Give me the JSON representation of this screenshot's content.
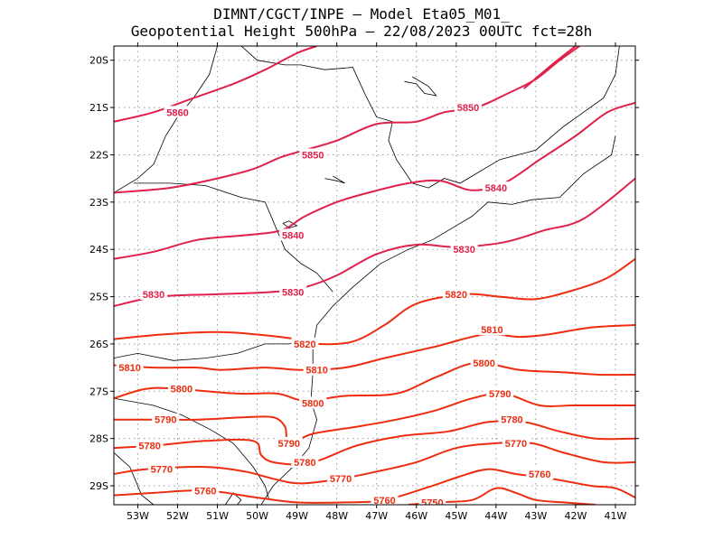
{
  "title": {
    "line1": "DIMNT/CGCT/INPE –  Model Eta05_M01_",
    "line2": "Geopotential Height 500hPa –  22/08/2023 00UTC fct=28h"
  },
  "axes": {
    "lat_labels": [
      "20S",
      "21S",
      "22S",
      "23S",
      "24S",
      "25S",
      "26S",
      "27S",
      "28S",
      "29S"
    ],
    "lon_labels": [
      "53W",
      "52W",
      "51W",
      "50W",
      "49W",
      "48W",
      "47W",
      "46W",
      "45W",
      "44W",
      "43W",
      "42W",
      "41W"
    ],
    "lat_range": [
      -29.4,
      -19.7
    ],
    "lon_range": [
      -53.6,
      -40.5
    ],
    "grid": "dotted"
  },
  "colors": {
    "high": "#e0204a",
    "low": "#ee2c10",
    "coast": "#000000",
    "grid": "#9a9a9a"
  },
  "chart_data": {
    "type": "contour",
    "variable": "Geopotential Height 500hPa",
    "contours": [
      {
        "value": 5860,
        "labels": [
          [
            -52.0,
            -21.1
          ]
        ],
        "points": [
          [
            -53.6,
            -21.3
          ],
          [
            -52.6,
            -21.1
          ],
          [
            -51.6,
            -20.8
          ],
          [
            -50.6,
            -20.5
          ],
          [
            -49.8,
            -20.2
          ],
          [
            -49.0,
            -19.85
          ],
          [
            -48.5,
            -19.7
          ]
        ]
      },
      {
        "value": 5860,
        "labels": [],
        "points": [
          [
            -43.3,
            -20.6
          ],
          [
            -42.6,
            -20.1
          ],
          [
            -42.0,
            -19.7
          ]
        ]
      },
      {
        "value": 5850,
        "labels": [
          [
            -48.6,
            -22.0
          ],
          [
            -44.7,
            -21.0
          ]
        ],
        "points": [
          [
            -53.6,
            -22.8
          ],
          [
            -52.2,
            -22.7
          ],
          [
            -51.0,
            -22.5
          ],
          [
            -50.1,
            -22.3
          ],
          [
            -49.4,
            -22.05
          ],
          [
            -48.8,
            -21.9
          ],
          [
            -48.0,
            -21.7
          ],
          [
            -47.0,
            -21.35
          ],
          [
            -46.0,
            -21.3
          ],
          [
            -45.3,
            -21.1
          ],
          [
            -44.5,
            -21.0
          ],
          [
            -43.7,
            -20.7
          ],
          [
            -43.0,
            -20.4
          ],
          [
            -42.4,
            -20.0
          ],
          [
            -41.9,
            -19.7
          ]
        ]
      },
      {
        "value": 5840,
        "labels": [
          [
            -49.1,
            -23.7
          ],
          [
            -44.0,
            -22.7
          ]
        ],
        "points": [
          [
            -53.6,
            -24.2
          ],
          [
            -52.6,
            -24.05
          ],
          [
            -51.5,
            -23.8
          ],
          [
            -50.3,
            -23.7
          ],
          [
            -49.4,
            -23.6
          ],
          [
            -48.8,
            -23.3
          ],
          [
            -48.0,
            -23.0
          ],
          [
            -47.2,
            -22.8
          ],
          [
            -46.2,
            -22.6
          ],
          [
            -45.4,
            -22.55
          ],
          [
            -44.6,
            -22.75
          ],
          [
            -43.8,
            -22.6
          ],
          [
            -42.9,
            -22.1
          ],
          [
            -42.0,
            -21.6
          ],
          [
            -41.2,
            -21.1
          ],
          [
            -40.5,
            -20.9
          ]
        ]
      },
      {
        "value": 5830,
        "labels": [
          [
            -52.6,
            -24.95
          ],
          [
            -49.1,
            -24.9
          ],
          [
            -44.8,
            -24.0
          ]
        ],
        "points": [
          [
            -53.6,
            -25.2
          ],
          [
            -52.5,
            -25.0
          ],
          [
            -51.0,
            -24.95
          ],
          [
            -49.6,
            -24.9
          ],
          [
            -48.8,
            -24.8
          ],
          [
            -48.0,
            -24.55
          ],
          [
            -47.0,
            -24.1
          ],
          [
            -46.0,
            -23.9
          ],
          [
            -45.0,
            -23.95
          ],
          [
            -43.8,
            -23.85
          ],
          [
            -42.8,
            -23.6
          ],
          [
            -41.8,
            -23.35
          ],
          [
            -40.5,
            -22.5
          ]
        ]
      },
      {
        "value": 5820,
        "labels": [
          [
            -48.8,
            -26.0
          ],
          [
            -45.0,
            -24.95
          ]
        ],
        "points": [
          [
            -53.6,
            -25.9
          ],
          [
            -52.4,
            -25.8
          ],
          [
            -51.0,
            -25.75
          ],
          [
            -50.0,
            -25.8
          ],
          [
            -49.0,
            -25.9
          ],
          [
            -48.5,
            -26.0
          ],
          [
            -47.6,
            -25.95
          ],
          [
            -46.8,
            -25.6
          ],
          [
            -46.0,
            -25.15
          ],
          [
            -44.8,
            -24.95
          ],
          [
            -43.9,
            -25.0
          ],
          [
            -43.0,
            -25.05
          ],
          [
            -42.0,
            -24.85
          ],
          [
            -41.2,
            -24.6
          ],
          [
            -40.5,
            -24.2
          ]
        ]
      },
      {
        "value": 5810,
        "labels": [
          [
            -53.2,
            -26.5
          ],
          [
            -48.5,
            -26.55
          ],
          [
            -44.1,
            -25.7
          ]
        ],
        "points": [
          [
            -53.6,
            -26.45
          ],
          [
            -52.6,
            -26.5
          ],
          [
            -51.5,
            -26.5
          ],
          [
            -50.9,
            -26.55
          ],
          [
            -49.8,
            -26.5
          ],
          [
            -48.9,
            -26.55
          ],
          [
            -47.8,
            -26.5
          ],
          [
            -46.8,
            -26.3
          ],
          [
            -45.5,
            -26.05
          ],
          [
            -44.3,
            -25.8
          ],
          [
            -43.4,
            -25.85
          ],
          [
            -42.7,
            -25.8
          ],
          [
            -41.6,
            -25.65
          ],
          [
            -40.5,
            -25.6
          ]
        ]
      },
      {
        "value": 5800,
        "labels": [
          [
            -51.9,
            -26.95
          ],
          [
            -48.6,
            -27.25
          ],
          [
            -44.3,
            -26.4
          ]
        ],
        "points": [
          [
            -53.6,
            -27.15
          ],
          [
            -52.8,
            -26.95
          ],
          [
            -52.0,
            -26.95
          ],
          [
            -50.5,
            -27.05
          ],
          [
            -49.5,
            -27.05
          ],
          [
            -48.8,
            -27.2
          ],
          [
            -47.8,
            -27.1
          ],
          [
            -46.5,
            -27.05
          ],
          [
            -45.5,
            -26.7
          ],
          [
            -44.5,
            -26.4
          ],
          [
            -43.4,
            -26.55
          ],
          [
            -42.3,
            -26.6
          ],
          [
            -41.4,
            -26.65
          ],
          [
            -40.5,
            -26.65
          ]
        ]
      },
      {
        "value": 5790,
        "labels": [
          [
            -52.3,
            -27.6
          ],
          [
            -49.2,
            -28.1
          ],
          [
            -43.9,
            -27.05
          ]
        ],
        "points": [
          [
            -53.6,
            -27.6
          ],
          [
            -52.8,
            -27.6
          ],
          [
            -51.5,
            -27.6
          ],
          [
            -50.3,
            -27.55
          ],
          [
            -49.6,
            -27.55
          ],
          [
            -49.3,
            -27.75
          ],
          [
            -49.2,
            -28.1
          ],
          [
            -48.6,
            -27.9
          ],
          [
            -47.5,
            -27.75
          ],
          [
            -46.5,
            -27.6
          ],
          [
            -45.5,
            -27.4
          ],
          [
            -44.6,
            -27.15
          ],
          [
            -43.8,
            -27.05
          ],
          [
            -42.9,
            -27.3
          ],
          [
            -42.0,
            -27.3
          ],
          [
            -40.5,
            -27.3
          ]
        ]
      },
      {
        "value": 5780,
        "labels": [
          [
            -52.7,
            -28.15
          ],
          [
            -48.8,
            -28.5
          ],
          [
            -43.6,
            -27.6
          ]
        ],
        "points": [
          [
            -53.6,
            -28.2
          ],
          [
            -52.6,
            -28.15
          ],
          [
            -51.3,
            -28.05
          ],
          [
            -50.1,
            -28.05
          ],
          [
            -49.9,
            -28.35
          ],
          [
            -49.6,
            -28.5
          ],
          [
            -48.9,
            -28.55
          ],
          [
            -48.4,
            -28.45
          ],
          [
            -47.5,
            -28.15
          ],
          [
            -46.4,
            -27.95
          ],
          [
            -45.2,
            -27.85
          ],
          [
            -44.2,
            -27.65
          ],
          [
            -43.3,
            -27.65
          ],
          [
            -42.4,
            -27.85
          ],
          [
            -41.5,
            -28.0
          ],
          [
            -40.5,
            -28.0
          ]
        ]
      },
      {
        "value": 5770,
        "labels": [
          [
            -52.4,
            -28.65
          ],
          [
            -47.9,
            -28.85
          ],
          [
            -43.5,
            -28.1
          ]
        ],
        "points": [
          [
            -53.6,
            -28.75
          ],
          [
            -52.8,
            -28.65
          ],
          [
            -51.3,
            -28.6
          ],
          [
            -50.3,
            -28.7
          ],
          [
            -49.6,
            -28.85
          ],
          [
            -48.9,
            -28.95
          ],
          [
            -47.9,
            -28.85
          ],
          [
            -47.0,
            -28.7
          ],
          [
            -46.0,
            -28.5
          ],
          [
            -45.0,
            -28.2
          ],
          [
            -44.0,
            -28.1
          ],
          [
            -43.1,
            -28.1
          ],
          [
            -42.3,
            -28.3
          ],
          [
            -41.3,
            -28.5
          ],
          [
            -40.5,
            -28.5
          ]
        ]
      },
      {
        "value": 5760,
        "labels": [
          [
            -51.3,
            -29.1
          ],
          [
            -46.8,
            -29.3
          ],
          [
            -42.9,
            -28.75
          ]
        ],
        "points": [
          [
            -53.6,
            -29.2
          ],
          [
            -52.6,
            -29.15
          ],
          [
            -51.3,
            -29.1
          ],
          [
            -50.0,
            -29.25
          ],
          [
            -49.0,
            -29.35
          ],
          [
            -47.8,
            -29.35
          ],
          [
            -46.8,
            -29.3
          ],
          [
            -45.6,
            -29.0
          ],
          [
            -44.9,
            -28.8
          ],
          [
            -44.2,
            -28.65
          ],
          [
            -43.5,
            -28.75
          ],
          [
            -42.6,
            -28.85
          ],
          [
            -41.6,
            -29.0
          ],
          [
            -41.0,
            -29.05
          ],
          [
            -40.5,
            -29.25
          ]
        ]
      },
      {
        "value": 5750,
        "labels": [
          [
            -45.6,
            -29.35
          ]
        ],
        "points": [
          [
            -46.2,
            -29.4
          ],
          [
            -45.5,
            -29.35
          ],
          [
            -44.6,
            -29.3
          ],
          [
            -44.0,
            -29.05
          ],
          [
            -43.5,
            -29.15
          ],
          [
            -43.0,
            -29.3
          ],
          [
            -42.3,
            -29.35
          ],
          [
            -41.5,
            -29.4
          ]
        ]
      }
    ]
  }
}
